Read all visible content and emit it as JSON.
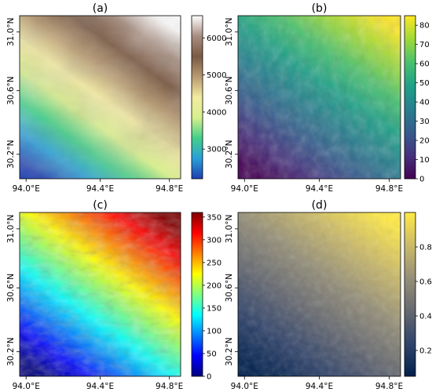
{
  "panels": [
    {
      "title": "(a)",
      "x_ticks": [
        "94.0°E",
        "94.4°E",
        "94.8°E"
      ],
      "y_ticks": [
        "30.2°N",
        "30.6°N",
        "31.0°N"
      ],
      "colorbar": {
        "ticks": [
          "3000",
          "4000",
          "5000",
          "6000"
        ],
        "range": [
          2200,
          6600
        ],
        "values": [
          3000,
          4000,
          5000,
          6000
        ]
      },
      "colormap": [
        "#1f3fb0",
        "#2aa0d8",
        "#44d08a",
        "#d8ef8e",
        "#f3eaa0",
        "#b89a70",
        "#7a5a44",
        "#a88e80",
        "#ffffff"
      ]
    },
    {
      "title": "(b)",
      "x_ticks": [
        "94.0°E",
        "94.4°E",
        "94.8°E"
      ],
      "y_ticks": [
        "30.2°N",
        "30.6°N",
        "31.0°N"
      ],
      "colorbar": {
        "ticks": [
          "0",
          "10",
          "20",
          "30",
          "40",
          "50",
          "60",
          "70",
          "80"
        ],
        "range": [
          0,
          85
        ],
        "values": [
          0,
          10,
          20,
          30,
          40,
          50,
          60,
          70,
          80
        ]
      },
      "colormap": [
        "#440154",
        "#46327e",
        "#365c8d",
        "#277f8e",
        "#1fa187",
        "#4ac16d",
        "#a0da39",
        "#fde725"
      ]
    },
    {
      "title": "(c)",
      "x_ticks": [
        "94.0°E",
        "94.4°E",
        "94.8°E"
      ],
      "y_ticks": [
        "30.2°N",
        "30.6°N",
        "31.0°N"
      ],
      "colorbar": {
        "ticks": [
          "0",
          "50",
          "100",
          "150",
          "200",
          "250",
          "300",
          "350"
        ],
        "range": [
          0,
          360
        ],
        "values": [
          0,
          50,
          100,
          150,
          200,
          250,
          300,
          350
        ]
      },
      "colormap": [
        "#00007f",
        "#0000ff",
        "#007fff",
        "#00ffff",
        "#7fff7f",
        "#ffff00",
        "#ff7f00",
        "#ff0000",
        "#7f0000"
      ]
    },
    {
      "title": "(d)",
      "x_ticks": [
        "94.0°E",
        "94.4°E",
        "94.8°E"
      ],
      "y_ticks": [
        "30.2°N",
        "30.6°N",
        "31.0°N"
      ],
      "colorbar": {
        "ticks": [
          "0.2",
          "0.4",
          "0.6",
          "0.8"
        ],
        "range": [
          0.05,
          1.0
        ],
        "values": [
          0.2,
          0.4,
          0.6,
          0.8
        ]
      },
      "colormap": [
        "#00204d",
        "#31446b",
        "#666970",
        "#958f78",
        "#cbba69",
        "#ffea46"
      ]
    }
  ],
  "chart_data": [
    {
      "type": "heatmap",
      "title": "(a)",
      "x_ticks": [
        "94.0°E",
        "94.4°E",
        "94.8°E"
      ],
      "y_ticks": [
        "30.2°N",
        "30.6°N",
        "31.0°N"
      ],
      "colorbar_range": [
        2200,
        6600
      ]
    },
    {
      "type": "heatmap",
      "title": "(b)",
      "x_ticks": [
        "94.0°E",
        "94.4°E",
        "94.8°E"
      ],
      "y_ticks": [
        "30.2°N",
        "30.6°N",
        "31.0°N"
      ],
      "colorbar_range": [
        0,
        85
      ]
    },
    {
      "type": "heatmap",
      "title": "(c)",
      "x_ticks": [
        "94.0°E",
        "94.4°E",
        "94.8°E"
      ],
      "y_ticks": [
        "30.2°N",
        "30.6°N",
        "31.0°N"
      ],
      "colorbar_range": [
        0,
        360
      ]
    },
    {
      "type": "heatmap",
      "title": "(d)",
      "x_ticks": [
        "94.0°E",
        "94.4°E",
        "94.8°E"
      ],
      "y_ticks": [
        "30.2°N",
        "30.6°N",
        "31.0°N"
      ],
      "colorbar_range": [
        0.05,
        1.0
      ]
    }
  ]
}
